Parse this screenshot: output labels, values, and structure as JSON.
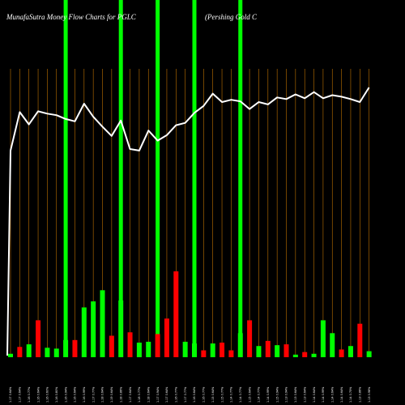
{
  "chart_data": {
    "type": "bar",
    "title": "MunafaSutra  Money Flow  Charts for PGLC",
    "subtitle": "(Pershing Gold C",
    "xlabel": "",
    "ylabel": "",
    "grid": true,
    "colors": {
      "background": "#000000",
      "up": "#00ff00",
      "down": "#ff0000",
      "line": "#ffffff",
      "grid": "#ff9900"
    },
    "categories": [
      "1.17 0.64%",
      "1.17 0.64%",
      "1.16 0.77%",
      "1.16 0.64%",
      "1.16 0.60%",
      "1.16 0.80%",
      "1.16 0.94%",
      "1.16 0.64%",
      "1.16 0.99%",
      "1.17 0.77%",
      "1.18 0.64%",
      "1.19 0.64%",
      "1.18 0.86%",
      "1.17 0.64%",
      "1.18 0.77%",
      "1.18 0.64%",
      "1.17 0.94%",
      "1.17 0.64%",
      "1.16 0.77%",
      "1.17 0.77%",
      "1.16 0.64%",
      "1.16 0.77%",
      "1.15 0.64%",
      "1.15 0.77%",
      "1.14 0.77%",
      "1.14 0.77%",
      "1.15 0.64%",
      "1.14 0.77%",
      "1.14 0.99%",
      "1.15 0.94%",
      "1.13 0.94%",
      "1.13 0.64%",
      "1.13 0.64%",
      "1.14 0.64%",
      "1.14 0.99%",
      "1.14 0.64%",
      "1.14 0.64%",
      "1.14 0.75%",
      "1.13 0.86%",
      "1.13 0.98%"
    ],
    "flow": [
      "up",
      "down",
      "up",
      "down",
      "up",
      "up",
      "up",
      "down",
      "up",
      "up",
      "up",
      "down",
      "up",
      "down",
      "up",
      "up",
      "down",
      "down",
      "down",
      "up",
      "up",
      "down",
      "up",
      "down",
      "down",
      "up",
      "down",
      "up",
      "down",
      "up",
      "down",
      "up",
      "down",
      "up",
      "up",
      "up",
      "down",
      "up",
      "down",
      "up"
    ],
    "volume": [
      0.04,
      0.12,
      0.15,
      0.43,
      0.11,
      0.1,
      0.2,
      0.2,
      0.58,
      0.65,
      0.78,
      0.25,
      0.66,
      0.29,
      0.17,
      0.18,
      0.27,
      0.45,
      1.0,
      0.18,
      0.16,
      0.08,
      0.16,
      0.17,
      0.08,
      0.28,
      0.43,
      0.13,
      0.19,
      0.14,
      0.15,
      0.03,
      0.06,
      0.04,
      0.43,
      0.28,
      0.09,
      0.13,
      0.39,
      0.07
    ],
    "price": [
      18,
      68,
      52,
      69,
      66,
      64,
      59,
      56,
      79,
      62,
      49,
      37,
      57,
      20,
      18,
      44,
      31,
      38,
      51,
      54,
      67,
      76,
      92,
      81,
      84,
      82,
      72,
      81,
      78,
      87,
      85,
      91,
      86,
      94,
      86,
      90,
      88,
      85,
      81,
      100
    ],
    "highlight_indices": [
      6,
      12,
      16,
      20,
      25
    ]
  }
}
